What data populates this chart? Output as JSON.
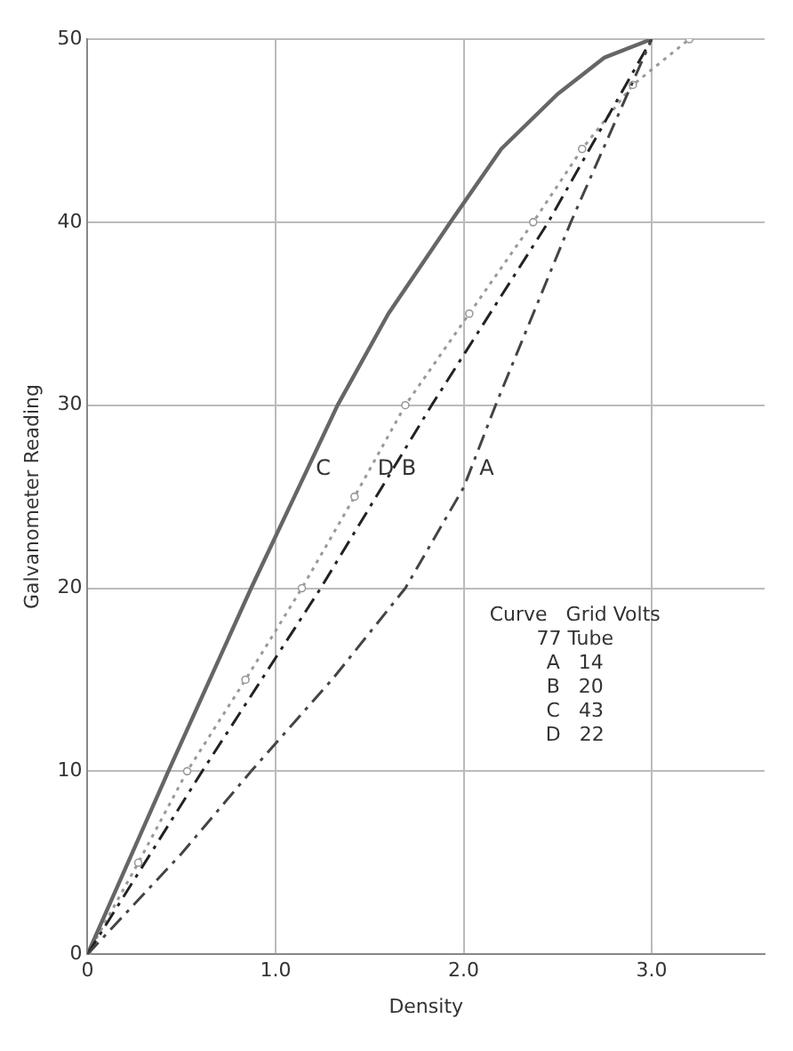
{
  "chart_data": {
    "type": "line",
    "xlabel": "Density",
    "ylabel": "Galvanometer Reading",
    "xlim": [
      0,
      3.6
    ],
    "xticks": [
      0,
      {
        "value": 1,
        "label": "1.0"
      },
      {
        "value": 2,
        "label": "2.0"
      },
      {
        "value": 3,
        "label": "3.0"
      }
    ],
    "ylim": [
      0,
      50
    ],
    "yticks": [
      0,
      10,
      20,
      30,
      40,
      50
    ],
    "grid": true,
    "legend": false,
    "series": [
      {
        "name": "A",
        "color": "#444444",
        "line_style": "dashed",
        "marker": "none",
        "x": [
          0,
          0.5,
          0.87,
          1.3,
          1.69,
          2.0,
          2.17,
          2.57,
          3.0
        ],
        "values": [
          0,
          5.5,
          10,
          15,
          20,
          25.5,
          30,
          40,
          50
        ]
      },
      {
        "name": "B",
        "color": "#222222",
        "line_style": "dashed",
        "marker": "none",
        "x": [
          0,
          0.61,
          1.24,
          1.83,
          2.45,
          3.0
        ],
        "values": [
          0,
          10,
          20,
          30,
          40,
          50
        ]
      },
      {
        "name": "C",
        "color": "#666666",
        "line_style": "solid",
        "marker": "none",
        "x": [
          0,
          0.43,
          0.87,
          1.1,
          1.33,
          1.6,
          1.93,
          2.2,
          2.5,
          2.75,
          3.0
        ],
        "values": [
          0,
          10,
          20,
          25,
          30,
          35,
          40,
          44,
          47,
          49,
          50
        ]
      },
      {
        "name": "D",
        "color": "#999999",
        "line_style": "dotted",
        "marker": "circle",
        "x": [
          0,
          0.27,
          0.53,
          0.84,
          1.14,
          1.42,
          1.69,
          2.03,
          2.37,
          2.63,
          2.9,
          3.2
        ],
        "values": [
          0,
          5,
          10,
          15,
          20,
          25,
          30,
          35,
          40,
          44,
          47.5,
          50
        ]
      }
    ],
    "annotations": [
      "Curve   Grid Volts",
      "77 Tube",
      "A   14",
      "B   20",
      "C   43",
      "D   22"
    ]
  }
}
